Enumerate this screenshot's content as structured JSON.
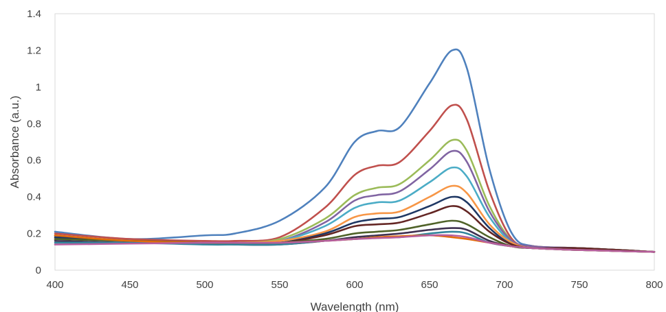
{
  "chart_data": {
    "type": "line",
    "title": "",
    "xlabel": "Wavelength (nm)",
    "ylabel": "Absorbance (a.u.)",
    "xlim": [
      400,
      800
    ],
    "ylim": [
      0,
      1.4
    ],
    "x_ticks": [
      "400",
      "450",
      "500",
      "550",
      "600",
      "650",
      "700",
      "750",
      "800"
    ],
    "y_ticks": [
      "0",
      "0.2",
      "0.4",
      "0.6",
      "0.8",
      "1",
      "1.2",
      "1.4"
    ],
    "grid": false,
    "legend": "none",
    "x": [
      400,
      450,
      500,
      520,
      550,
      580,
      600,
      615,
      630,
      650,
      665,
      675,
      690,
      705,
      720,
      750,
      800
    ],
    "series": [
      {
        "color": "#4f81bd",
        "values": [
          0.21,
          0.17,
          0.19,
          0.2,
          0.27,
          0.45,
          0.7,
          0.76,
          0.78,
          1.02,
          1.2,
          1.1,
          0.55,
          0.2,
          0.13,
          0.12,
          0.1
        ]
      },
      {
        "color": "#c0504d",
        "values": [
          0.2,
          0.17,
          0.16,
          0.16,
          0.18,
          0.34,
          0.52,
          0.57,
          0.59,
          0.76,
          0.9,
          0.82,
          0.43,
          0.17,
          0.13,
          0.12,
          0.1
        ]
      },
      {
        "color": "#9bbb59",
        "values": [
          0.19,
          0.16,
          0.15,
          0.15,
          0.17,
          0.28,
          0.41,
          0.45,
          0.47,
          0.6,
          0.71,
          0.65,
          0.35,
          0.16,
          0.13,
          0.12,
          0.1
        ]
      },
      {
        "color": "#8064a2",
        "values": [
          0.19,
          0.16,
          0.15,
          0.15,
          0.16,
          0.26,
          0.38,
          0.41,
          0.43,
          0.55,
          0.65,
          0.59,
          0.32,
          0.16,
          0.13,
          0.12,
          0.1
        ]
      },
      {
        "color": "#4bacc6",
        "values": [
          0.18,
          0.16,
          0.15,
          0.15,
          0.16,
          0.24,
          0.34,
          0.37,
          0.38,
          0.48,
          0.56,
          0.51,
          0.29,
          0.15,
          0.12,
          0.12,
          0.1
        ]
      },
      {
        "color": "#f79646",
        "values": [
          0.18,
          0.16,
          0.15,
          0.15,
          0.16,
          0.21,
          0.29,
          0.31,
          0.32,
          0.4,
          0.46,
          0.42,
          0.25,
          0.15,
          0.12,
          0.12,
          0.1
        ]
      },
      {
        "color": "#1f3864",
        "values": [
          0.18,
          0.16,
          0.15,
          0.15,
          0.15,
          0.2,
          0.26,
          0.28,
          0.29,
          0.35,
          0.4,
          0.37,
          0.23,
          0.14,
          0.12,
          0.12,
          0.1
        ]
      },
      {
        "color": "#632523",
        "values": [
          0.17,
          0.16,
          0.15,
          0.15,
          0.15,
          0.19,
          0.24,
          0.25,
          0.26,
          0.31,
          0.35,
          0.32,
          0.21,
          0.14,
          0.12,
          0.12,
          0.1
        ]
      },
      {
        "color": "#4f6228",
        "values": [
          0.17,
          0.16,
          0.15,
          0.14,
          0.15,
          0.17,
          0.2,
          0.21,
          0.22,
          0.25,
          0.27,
          0.25,
          0.18,
          0.13,
          0.12,
          0.11,
          0.1
        ]
      },
      {
        "color": "#3f3151",
        "values": [
          0.16,
          0.15,
          0.15,
          0.14,
          0.14,
          0.16,
          0.18,
          0.19,
          0.2,
          0.22,
          0.23,
          0.22,
          0.16,
          0.13,
          0.12,
          0.11,
          0.1
        ]
      },
      {
        "color": "#31859c",
        "values": [
          0.15,
          0.15,
          0.14,
          0.14,
          0.14,
          0.16,
          0.17,
          0.18,
          0.18,
          0.2,
          0.21,
          0.2,
          0.15,
          0.13,
          0.12,
          0.11,
          0.1
        ]
      },
      {
        "color": "#e46c0a",
        "values": [
          0.19,
          0.16,
          0.15,
          0.15,
          0.15,
          0.16,
          0.17,
          0.18,
          0.185,
          0.19,
          0.18,
          0.17,
          0.15,
          0.13,
          0.12,
          0.11,
          0.1
        ]
      },
      {
        "color": "#b65f9e",
        "values": [
          0.14,
          0.145,
          0.15,
          0.15,
          0.15,
          0.16,
          0.17,
          0.175,
          0.18,
          0.19,
          0.19,
          0.18,
          0.15,
          0.13,
          0.12,
          0.11,
          0.1
        ]
      }
    ]
  }
}
